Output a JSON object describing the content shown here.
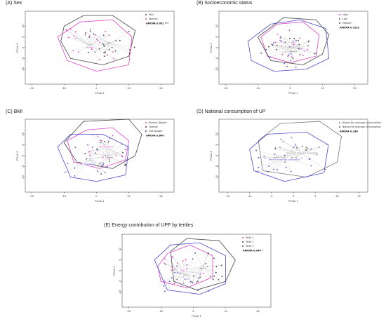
{
  "chart_data": [
    {
      "type": "scatter",
      "panel_title": "(A) Sex",
      "xlabel": "PCoA 1",
      "ylabel": "PCoA 2",
      "xlim": [
        -22,
        24
      ],
      "ylim": [
        -17,
        17
      ],
      "xticks": [
        -20,
        -10,
        0,
        10,
        20
      ],
      "yticks": [
        -10,
        -5,
        0,
        5,
        10
      ],
      "legend_position": "top-right",
      "annotation": "AMOVA 0.001 ***",
      "groups": [
        {
          "name": "Men",
          "color": "#444444",
          "centroid": [
            4,
            2
          ],
          "spread": [
            6,
            5
          ],
          "hull": [
            [
              -10,
              10
            ],
            [
              -4,
              15
            ],
            [
              5,
              15
            ],
            [
              12,
              8
            ],
            [
              10,
              -4
            ],
            [
              2,
              -8
            ],
            [
              -8,
              -5
            ],
            [
              -11,
              3
            ]
          ],
          "points": 24
        },
        {
          "name": "Women",
          "color": "#e040c8",
          "centroid": [
            -2,
            1
          ],
          "spread": [
            6,
            6
          ],
          "hull": [
            [
              -12,
              5
            ],
            [
              -5,
              12
            ],
            [
              5,
              13
            ],
            [
              11,
              5
            ],
            [
              10,
              -8
            ],
            [
              0,
              -11
            ],
            [
              -9,
              -6
            ]
          ],
          "points": 24
        }
      ]
    },
    {
      "type": "scatter",
      "panel_title": "(B) Socioeconomic status",
      "xlabel": "PCoA 1",
      "ylabel": "PCoA 2",
      "xlim": [
        -22,
        24
      ],
      "ylim": [
        -17,
        17
      ],
      "xticks": [
        -20,
        -10,
        0,
        10,
        20
      ],
      "yticks": [
        -10,
        -5,
        0,
        5,
        10
      ],
      "legend_position": "top-right",
      "annotation": "AMOVA 0.722n",
      "groups": [
        {
          "name": "High",
          "color": "#e040c8",
          "centroid": [
            1,
            2
          ],
          "spread": [
            5,
            5
          ],
          "hull": [
            [
              -9,
              5
            ],
            [
              -4,
              11
            ],
            [
              4,
              12
            ],
            [
              9,
              6
            ],
            [
              8,
              -4
            ],
            [
              0,
              -7
            ],
            [
              -7,
              -4
            ]
          ],
          "points": 16
        },
        {
          "name": "Low",
          "color": "#4a4ad0",
          "centroid": [
            0,
            -2
          ],
          "spread": [
            7,
            6
          ],
          "hull": [
            [
              -13,
              3
            ],
            [
              -6,
              11
            ],
            [
              3,
              13
            ],
            [
              11,
              9
            ],
            [
              12,
              -5
            ],
            [
              5,
              -10
            ],
            [
              -5,
              -11
            ],
            [
              -12,
              -6
            ]
          ],
          "points": 18
        },
        {
          "name": "Medium",
          "color": "#444444",
          "centroid": [
            1,
            0
          ],
          "spread": [
            6,
            5
          ],
          "hull": [
            [
              -10,
              5
            ],
            [
              -2,
              14
            ],
            [
              8,
              13
            ],
            [
              12,
              6
            ],
            [
              10,
              -3
            ],
            [
              4,
              -8
            ],
            [
              -6,
              -6
            ]
          ],
          "points": 16
        }
      ]
    },
    {
      "type": "scatter",
      "panel_title": "(C) BMI",
      "xlabel": "PCoA 1",
      "ylabel": "PCoA 2",
      "xlim": [
        -22,
        24
      ],
      "ylim": [
        -17,
        17
      ],
      "xticks": [
        -20,
        -10,
        0,
        10,
        20
      ],
      "yticks": [
        -10,
        -5,
        0,
        5,
        10
      ],
      "legend_position": "top-right",
      "annotation": "AMOVA 0,640",
      "groups": [
        {
          "name": "Normal_Weight",
          "color": "#e040c8",
          "centroid": [
            3,
            4
          ],
          "spread": [
            5,
            5
          ],
          "hull": [
            [
              -9,
              7
            ],
            [
              -3,
              12
            ],
            [
              5,
              13
            ],
            [
              10,
              7
            ],
            [
              9,
              -2
            ],
            [
              1,
              -6
            ],
            [
              -7,
              -3
            ]
          ],
          "points": 16
        },
        {
          "name": "Obesity",
          "color": "#444444",
          "centroid": [
            4,
            0
          ],
          "spread": [
            6,
            6
          ],
          "hull": [
            [
              -10,
              6
            ],
            [
              -4,
              16
            ],
            [
              10,
              17
            ],
            [
              14,
              10
            ],
            [
              12,
              0
            ],
            [
              5,
              -6
            ],
            [
              -6,
              -3
            ]
          ],
          "points": 16
        },
        {
          "name": "Overweight",
          "color": "#4a4ad0",
          "centroid": [
            -2,
            -2
          ],
          "spread": [
            6,
            6
          ],
          "hull": [
            [
              -12,
              4
            ],
            [
              -8,
              10
            ],
            [
              2,
              10
            ],
            [
              10,
              4
            ],
            [
              9,
              -9
            ],
            [
              0,
              -12
            ],
            [
              -8,
              -10
            ]
          ],
          "points": 16
        }
      ]
    },
    {
      "type": "scatter",
      "panel_title": "(D) National consumption of UP",
      "xlabel": "PCoA 1",
      "ylabel": "PCoA 2",
      "xlim": [
        -17,
        17
      ],
      "ylim": [
        -17,
        17
      ],
      "xticks": [
        -15,
        -10,
        -5,
        0,
        5,
        10,
        15
      ],
      "yticks": [
        -10,
        -5,
        0,
        5,
        10
      ],
      "legend_position": "top-right",
      "annotation": "AMOVA 0.146",
      "groups": [
        {
          "name": "Above the average consumption",
          "color": "#777777",
          "centroid": [
            2,
            1
          ],
          "spread": [
            5,
            6
          ],
          "hull": [
            [
              -8,
              7
            ],
            [
              -3,
              15
            ],
            [
              6,
              16
            ],
            [
              11,
              9
            ],
            [
              10,
              -3
            ],
            [
              3,
              -10
            ],
            [
              -7,
              -7
            ]
          ],
          "points": 24
        },
        {
          "name": "Below the average consumption",
          "color": "#4a4ad0",
          "centroid": [
            -2,
            -1
          ],
          "spread": [
            5,
            5
          ],
          "hull": [
            [
              -10,
              3
            ],
            [
              -6,
              10
            ],
            [
              3,
              11
            ],
            [
              8,
              5
            ],
            [
              7,
              -8
            ],
            [
              -2,
              -12
            ],
            [
              -9,
              -7
            ]
          ],
          "points": 20
        }
      ]
    },
    {
      "type": "scatter",
      "panel_title": "(E) Energy contribution of UPF by tertiles",
      "xlabel": "PCoA 1",
      "ylabel": "PCoA 2",
      "xlim": [
        -22,
        24
      ],
      "ylim": [
        -17,
        17
      ],
      "xticks": [
        -20,
        -10,
        0,
        10,
        20
      ],
      "yticks": [
        -10,
        -5,
        0,
        5,
        10
      ],
      "legend_position": "top-right",
      "annotation": "AMOVA 0.044 *",
      "groups": [
        {
          "name": "Tertil 1",
          "color": "#e040c8",
          "centroid": [
            -3,
            0
          ],
          "spread": [
            5,
            5
          ],
          "hull": [
            [
              -11,
              2
            ],
            [
              -8,
              8
            ],
            [
              -1,
              12
            ],
            [
              6,
              7
            ],
            [
              6,
              -3
            ],
            [
              -2,
              -8
            ],
            [
              -10,
              -5
            ]
          ],
          "points": 18
        },
        {
          "name": "Tertil 2",
          "color": "#444444",
          "centroid": [
            3,
            2
          ],
          "spread": [
            5,
            6
          ],
          "hull": [
            [
              -7,
              9
            ],
            [
              -2,
              15
            ],
            [
              8,
              14
            ],
            [
              13,
              5
            ],
            [
              10,
              -5
            ],
            [
              1,
              -9
            ],
            [
              -6,
              -5
            ]
          ],
          "points": 18
        },
        {
          "name": "Tertil 3",
          "color": "#4a4ad0",
          "centroid": [
            -2,
            -2
          ],
          "spread": [
            6,
            6
          ],
          "hull": [
            [
              -12,
              5
            ],
            [
              -7,
              12
            ],
            [
              2,
              13
            ],
            [
              10,
              7
            ],
            [
              10,
              -6
            ],
            [
              2,
              -11
            ],
            [
              -8,
              -9
            ]
          ],
          "points": 18
        }
      ]
    }
  ]
}
